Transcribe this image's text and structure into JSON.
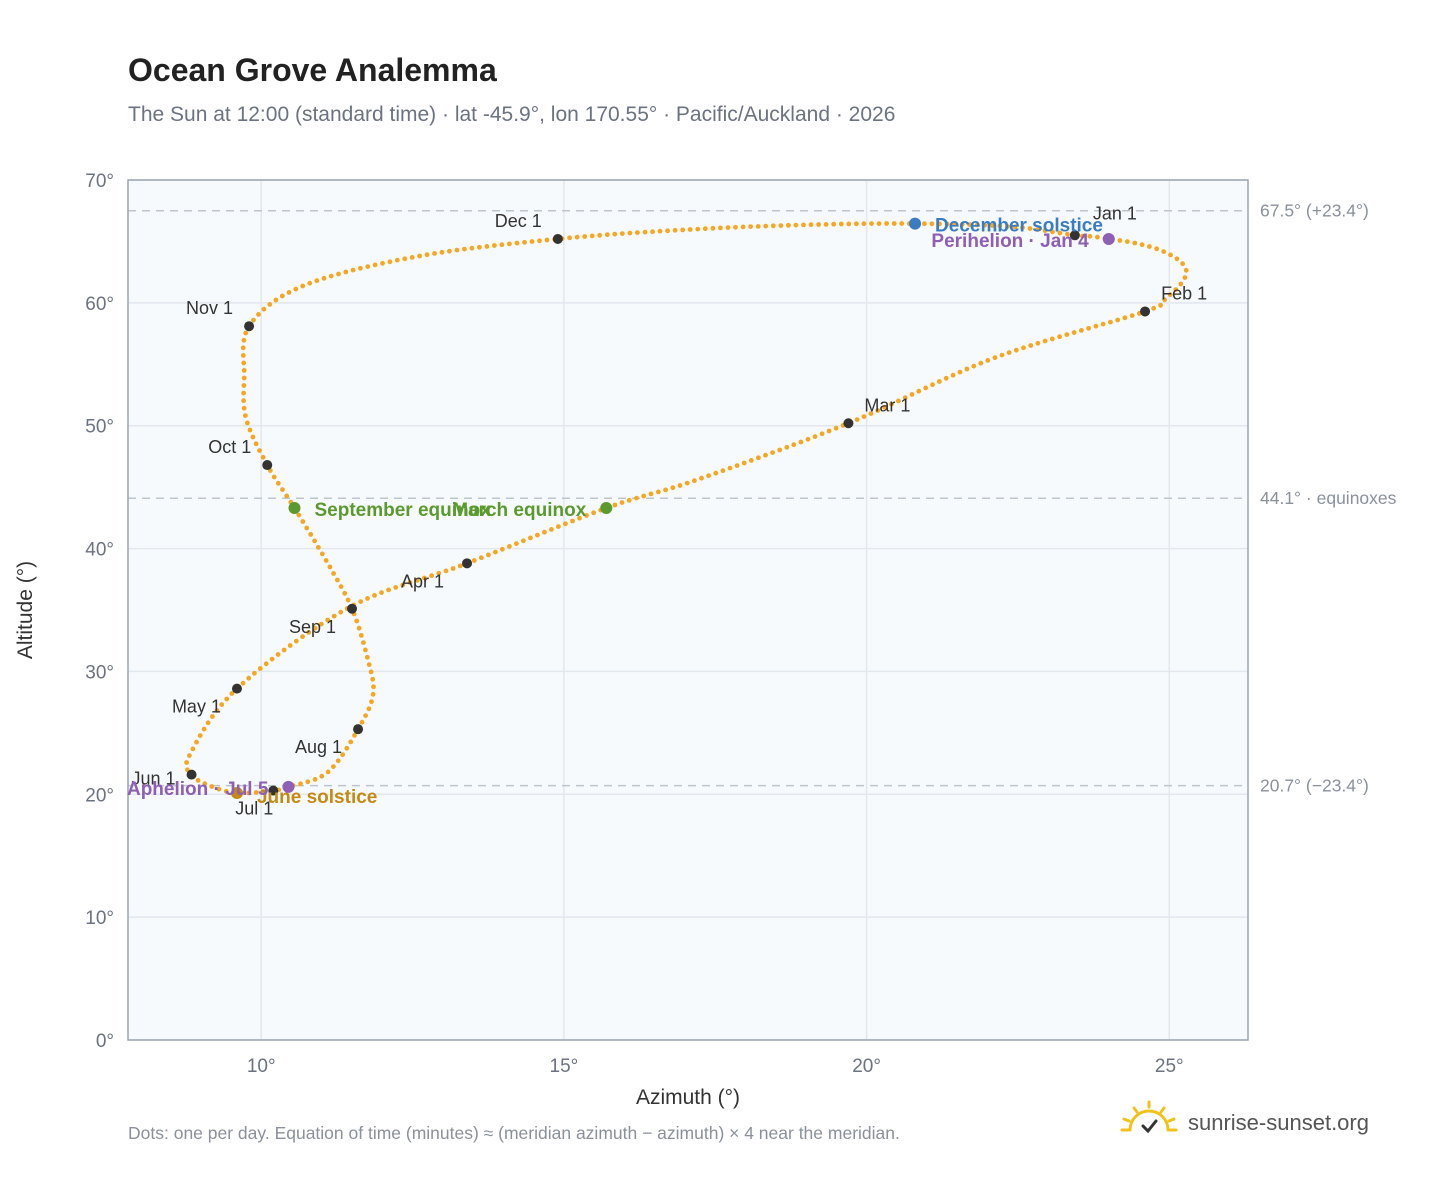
{
  "title": "Ocean Grove Analemma",
  "subtitle": "The Sun at 12:00 (standard time) · lat -45.9°, lon 170.55° · Pacific/Auckland · 2026",
  "footnote": "Dots: one per day. Equation of time (minutes) ≈ (meridian azimuth − azimuth) × 4 near the meridian.",
  "brand": {
    "name": "sunrise-sunset.org",
    "icon": "sun-icon"
  },
  "colors": {
    "curve": "#f5a623",
    "month_marker": "#333333",
    "equinox": "#5a9a2e",
    "december_solstice": "#3a7cc4",
    "june_solstice": "#c48a12",
    "apsis": "#8e5fb5",
    "plot_bg": "#f7fafc",
    "grid": "#e2e8ee",
    "ref_line": "#bcc6cf"
  },
  "chart_data": {
    "type": "scatter",
    "xlabel": "Azimuth (°)",
    "ylabel": "Altitude (°)",
    "xlim": [
      7.8,
      26.3
    ],
    "ylim": [
      0,
      70
    ],
    "xticks": [
      10,
      15,
      20,
      25
    ],
    "yticks": [
      0,
      10,
      20,
      30,
      40,
      50,
      60,
      70
    ],
    "xtick_labels": [
      "10°",
      "15°",
      "20°",
      "25°"
    ],
    "ytick_labels": [
      "0°",
      "10°",
      "20°",
      "30°",
      "40°",
      "50°",
      "60°",
      "70°"
    ],
    "grid": true,
    "reference_lines": [
      {
        "y": 67.5,
        "label": "67.5° (+23.4°)"
      },
      {
        "y": 44.1,
        "label": "44.1° · equinoxes"
      },
      {
        "y": 20.7,
        "label": "20.7° (−23.4°)"
      }
    ],
    "series": [
      {
        "name": "daily",
        "points": [
          [
            23.44,
            65.5
          ],
          [
            23.72,
            65.4
          ],
          [
            24.0,
            65.2
          ],
          [
            24.4,
            64.9
          ],
          [
            24.82,
            64.35
          ],
          [
            25.15,
            63.5
          ],
          [
            25.28,
            62.6
          ],
          [
            25.2,
            61.6
          ],
          [
            24.95,
            60.4
          ],
          [
            24.6,
            59.3
          ],
          [
            22.1,
            55.5
          ],
          [
            19.7,
            50.2
          ],
          [
            17.2,
            45.6
          ],
          [
            15.7,
            43.3
          ],
          [
            13.4,
            38.8
          ],
          [
            11.45,
            35.2
          ],
          [
            9.6,
            28.6
          ],
          [
            8.82,
            23.2
          ],
          [
            8.85,
            21.6
          ],
          [
            9.15,
            20.7
          ],
          [
            9.6,
            20.1
          ],
          [
            10.2,
            20.3
          ],
          [
            10.45,
            20.6
          ],
          [
            11.1,
            21.8
          ],
          [
            11.6,
            25.3
          ],
          [
            11.85,
            28.2
          ],
          [
            11.75,
            31.2
          ],
          [
            11.5,
            35.1
          ],
          [
            11.1,
            38.8
          ],
          [
            10.55,
            43.3
          ],
          [
            10.1,
            46.8
          ],
          [
            9.75,
            50.6
          ],
          [
            9.72,
            54.0
          ],
          [
            9.8,
            58.1
          ],
          [
            10.7,
            61.4
          ],
          [
            12.6,
            63.8
          ],
          [
            14.9,
            65.2
          ],
          [
            17.0,
            65.95
          ],
          [
            19.0,
            66.35
          ],
          [
            20.8,
            66.45
          ],
          [
            22.4,
            66.2
          ],
          [
            23.44,
            65.5
          ]
        ]
      }
    ],
    "month_markers": [
      {
        "label": "Jan 1",
        "x": 23.44,
        "y": 65.5
      },
      {
        "label": "Feb 1",
        "x": 24.6,
        "y": 59.3
      },
      {
        "label": "Mar 1",
        "x": 19.7,
        "y": 50.2
      },
      {
        "label": "Apr 1",
        "x": 13.4,
        "y": 38.8
      },
      {
        "label": "May 1",
        "x": 9.6,
        "y": 28.6
      },
      {
        "label": "Jun 1",
        "x": 8.85,
        "y": 21.6
      },
      {
        "label": "Jul 1",
        "x": 10.2,
        "y": 20.3
      },
      {
        "label": "Aug 1",
        "x": 11.6,
        "y": 25.3
      },
      {
        "label": "Sep 1",
        "x": 11.5,
        "y": 35.1
      },
      {
        "label": "Oct 1",
        "x": 10.1,
        "y": 46.8
      },
      {
        "label": "Nov 1",
        "x": 9.8,
        "y": 58.1
      },
      {
        "label": "Dec 1",
        "x": 14.9,
        "y": 65.2
      }
    ],
    "events": [
      {
        "label": "March equinox",
        "x": 15.7,
        "y": 43.3,
        "kind": "equinox"
      },
      {
        "label": "September equinox",
        "x": 10.55,
        "y": 43.3,
        "kind": "equinox"
      },
      {
        "label": "December solstice",
        "x": 20.8,
        "y": 66.45,
        "kind": "december_solstice"
      },
      {
        "label": "June solstice",
        "x": 9.6,
        "y": 20.1,
        "kind": "june_solstice"
      },
      {
        "label": "Perihelion · Jan 4",
        "x": 24.0,
        "y": 65.2,
        "kind": "apsis"
      },
      {
        "label": "Aphelion · Jul 5",
        "x": 10.45,
        "y": 20.6,
        "kind": "apsis"
      }
    ]
  }
}
